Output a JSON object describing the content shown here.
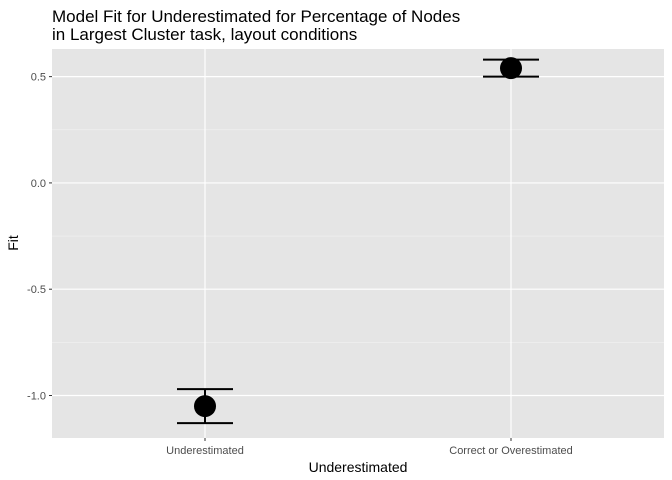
{
  "chart_data": {
    "type": "scatter",
    "title_lines": [
      "Model Fit for Underestimated for Percentage of Nodes",
      "in Largest Cluster task, layout conditions"
    ],
    "xlabel": "Underestimated",
    "ylabel": "Fit",
    "categories": [
      "Underestimated",
      "Correct or Overestimated"
    ],
    "values": [
      -1.05,
      0.54
    ],
    "ci_lower": [
      -1.13,
      0.5
    ],
    "ci_upper": [
      -0.97,
      0.58
    ],
    "yticks": [
      0.5,
      0.0,
      -0.5,
      -1.0
    ],
    "ytick_labels": [
      "0.5",
      "0.0",
      "-0.5",
      "-1.0"
    ],
    "ylim": [
      -1.2,
      0.63
    ],
    "grid": true,
    "legend": "none",
    "colors": {
      "panel": "#e5e5e5",
      "grid_major": "#ffffff",
      "point": "#000000",
      "errorbar": "#000000"
    }
  }
}
